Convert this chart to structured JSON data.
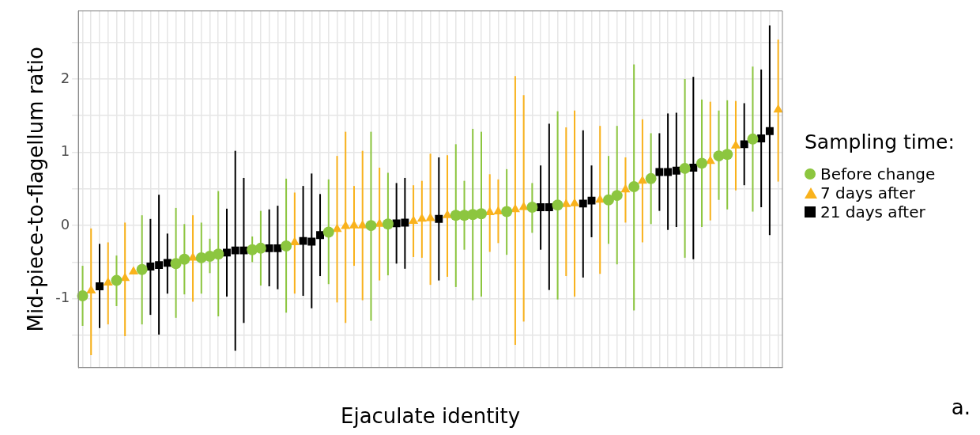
{
  "chart_data": {
    "type": "scatter",
    "xlabel": "Ejaculate identity",
    "ylabel": "Mid-piece-to-flagellum ratio",
    "legend_title": "Sampling time:",
    "legend": "right",
    "grid": true,
    "tick_labels": "y",
    "annotations": [
      "a."
    ],
    "ylim": [
      -1.94,
      2.93
    ],
    "yticks": [
      {
        "value": -1.5,
        "label": null
      },
      -1,
      {
        "value": -0.5,
        "label": null
      },
      0,
      {
        "value": 0.5,
        "label": null
      },
      1,
      {
        "value": 1.5,
        "label": null
      },
      2,
      {
        "value": 2.5,
        "label": null
      }
    ],
    "categories": [
      null,
      null,
      null,
      null,
      null,
      null,
      null,
      null,
      null,
      null,
      null,
      null,
      null,
      null,
      null,
      null,
      null,
      null,
      null,
      null,
      null,
      null,
      null,
      null,
      null,
      null,
      null,
      null,
      null,
      null,
      null,
      null,
      null,
      null,
      null,
      null,
      null,
      null,
      null,
      null,
      null,
      null,
      null,
      null,
      null,
      null,
      null,
      null,
      null,
      null,
      null,
      null,
      null,
      null,
      null,
      null,
      null,
      null,
      null,
      null,
      null,
      null,
      null,
      null,
      null,
      null,
      null,
      null,
      null,
      null,
      null,
      null,
      null,
      null,
      null,
      null,
      null,
      null,
      null,
      null,
      null,
      null,
      null
    ],
    "series": [
      {
        "name": "Before change",
        "color": "#8cc63f",
        "marker": "circle",
        "values": [
          -0.96,
          null,
          null,
          null,
          -0.75,
          null,
          null,
          -0.6,
          null,
          null,
          null,
          -0.52,
          -0.46,
          null,
          -0.44,
          -0.42,
          -0.39,
          null,
          null,
          null,
          -0.33,
          -0.31,
          null,
          null,
          -0.28,
          null,
          null,
          null,
          null,
          -0.09,
          null,
          null,
          null,
          null,
          0,
          null,
          0.02,
          null,
          null,
          null,
          null,
          null,
          null,
          null,
          0.14,
          0.14,
          0.15,
          0.16,
          null,
          null,
          0.19,
          null,
          null,
          0.25,
          null,
          null,
          0.28,
          null,
          null,
          null,
          null,
          null,
          0.35,
          0.41,
          null,
          0.53,
          null,
          0.64,
          null,
          null,
          null,
          0.78,
          null,
          0.85,
          null,
          0.95,
          0.97,
          null,
          null,
          1.18,
          null,
          null,
          null
        ],
        "errors": [
          [
            -1.37,
            -0.55
          ],
          null,
          null,
          null,
          [
            -1.1,
            -0.41
          ],
          null,
          null,
          [
            -1.35,
            0.14
          ],
          null,
          null,
          null,
          [
            -1.26,
            0.24
          ],
          [
            -0.94,
            0.02
          ],
          null,
          [
            -0.93,
            0.04
          ],
          [
            -0.65,
            -0.18
          ],
          [
            -1.24,
            0.47
          ],
          null,
          null,
          null,
          [
            -0.5,
            -0.15
          ],
          [
            -0.82,
            0.2
          ],
          null,
          null,
          [
            -1.19,
            0.64
          ],
          null,
          null,
          null,
          null,
          [
            -0.8,
            0.63
          ],
          null,
          null,
          null,
          null,
          [
            -1.3,
            1.28
          ],
          null,
          [
            -0.68,
            0.72
          ],
          null,
          null,
          null,
          null,
          null,
          null,
          null,
          [
            -0.84,
            1.11
          ],
          [
            -0.33,
            0.61
          ],
          [
            -1.02,
            1.32
          ],
          [
            -0.97,
            1.28
          ],
          null,
          null,
          [
            -0.4,
            0.77
          ],
          null,
          null,
          [
            -0.1,
            0.58
          ],
          null,
          null,
          [
            -1.01,
            1.56
          ],
          null,
          null,
          null,
          null,
          null,
          [
            -0.25,
            0.95
          ],
          [
            -0.53,
            1.36
          ],
          null,
          [
            -1.16,
            2.2
          ],
          null,
          [
            0.02,
            1.26
          ],
          null,
          null,
          null,
          [
            -0.44,
            2
          ],
          null,
          [
            -0.02,
            1.72
          ],
          null,
          [
            0.35,
            1.57
          ],
          [
            0.22,
            1.71
          ],
          null,
          null,
          [
            0.19,
            2.17
          ],
          null,
          null,
          null
        ]
      },
      {
        "name": "7 days after",
        "color": "#f9b21c",
        "marker": "triangle",
        "values": [
          null,
          -0.89,
          null,
          -0.78,
          null,
          -0.72,
          -0.63,
          null,
          null,
          null,
          null,
          null,
          null,
          -0.44,
          null,
          null,
          null,
          null,
          null,
          null,
          null,
          null,
          null,
          null,
          null,
          -0.23,
          null,
          null,
          null,
          null,
          -0.05,
          -0.01,
          0,
          0,
          null,
          0.02,
          null,
          null,
          null,
          0.06,
          0.09,
          0.1,
          null,
          0.14,
          null,
          null,
          null,
          null,
          0.18,
          0.19,
          null,
          0.22,
          0.25,
          null,
          null,
          null,
          null,
          0.29,
          0.3,
          null,
          null,
          0.35,
          null,
          null,
          0.49,
          null,
          0.61,
          null,
          null,
          null,
          null,
          null,
          null,
          null,
          0.88,
          null,
          null,
          1.09,
          null,
          null,
          null,
          null,
          1.58
        ],
        "errors": [
          null,
          [
            -1.77,
            -0.04
          ],
          null,
          [
            -1.35,
            -0.23
          ],
          null,
          [
            -1.51,
            0.04
          ],
          null,
          null,
          null,
          null,
          null,
          null,
          null,
          [
            -1.04,
            0.14
          ],
          null,
          null,
          null,
          null,
          null,
          null,
          null,
          null,
          null,
          null,
          null,
          [
            -0.93,
            0.45
          ],
          null,
          null,
          null,
          null,
          [
            -1.05,
            0.95
          ],
          [
            -1.33,
            1.28
          ],
          [
            -0.55,
            0.54
          ],
          [
            -1.02,
            1.02
          ],
          null,
          [
            -0.75,
            0.79
          ],
          null,
          null,
          null,
          [
            -0.43,
            0.55
          ],
          [
            -0.44,
            0.61
          ],
          [
            -0.81,
            0.98
          ],
          null,
          [
            -0.7,
            0.96
          ],
          null,
          null,
          null,
          null,
          [
            -0.36,
            0.7
          ],
          [
            -0.24,
            0.63
          ],
          null,
          [
            -1.63,
            2.04
          ],
          [
            -1.31,
            1.78
          ],
          null,
          null,
          null,
          null,
          [
            -0.69,
            1.34
          ],
          [
            -0.97,
            1.57
          ],
          null,
          null,
          [
            -0.66,
            1.36
          ],
          null,
          null,
          [
            0.04,
            0.93
          ],
          null,
          [
            -0.23,
            1.45
          ],
          null,
          null,
          null,
          null,
          null,
          null,
          null,
          [
            0.07,
            1.69
          ],
          null,
          null,
          [
            0.48,
            1.7
          ],
          null,
          null,
          null,
          null,
          [
            0.6,
            2.54
          ]
        ]
      },
      {
        "name": "21 days after",
        "color": "#000000",
        "marker": "square",
        "values": [
          null,
          null,
          -0.83,
          null,
          null,
          null,
          null,
          null,
          -0.56,
          -0.54,
          -0.51,
          null,
          null,
          null,
          null,
          null,
          null,
          -0.37,
          -0.34,
          -0.34,
          null,
          null,
          -0.31,
          -0.31,
          null,
          null,
          -0.21,
          -0.22,
          -0.13,
          null,
          null,
          null,
          null,
          null,
          null,
          null,
          null,
          0.03,
          0.04,
          null,
          null,
          null,
          0.09,
          null,
          null,
          null,
          null,
          null,
          null,
          null,
          null,
          null,
          null,
          null,
          0.25,
          0.25,
          null,
          null,
          null,
          0.3,
          0.34,
          null,
          null,
          null,
          null,
          null,
          null,
          null,
          0.73,
          0.73,
          0.75,
          null,
          0.79,
          null,
          null,
          null,
          null,
          null,
          1.11,
          null,
          1.19,
          1.29,
          null
        ],
        "errors": [
          null,
          null,
          [
            -1.4,
            -0.25
          ],
          null,
          null,
          null,
          null,
          null,
          [
            -1.22,
            0.09
          ],
          [
            -1.49,
            0.42
          ],
          [
            -0.93,
            -0.11
          ],
          null,
          null,
          null,
          null,
          null,
          null,
          [
            -0.97,
            0.23
          ],
          [
            -1.71,
            1.02
          ],
          [
            -1.33,
            0.65
          ],
          null,
          null,
          [
            -0.83,
            0.22
          ],
          [
            -0.87,
            0.27
          ],
          null,
          null,
          [
            -0.96,
            0.54
          ],
          [
            -1.13,
            0.71
          ],
          [
            -0.69,
            0.43
          ],
          null,
          null,
          null,
          null,
          null,
          null,
          null,
          null,
          [
            -0.52,
            0.58
          ],
          [
            -0.59,
            0.65
          ],
          null,
          null,
          null,
          [
            -0.75,
            0.93
          ],
          null,
          null,
          null,
          null,
          null,
          null,
          null,
          null,
          null,
          null,
          null,
          [
            -0.33,
            0.82
          ],
          [
            -0.88,
            1.39
          ],
          null,
          null,
          null,
          [
            -0.71,
            1.3
          ],
          [
            -0.16,
            0.82
          ],
          null,
          null,
          null,
          null,
          null,
          null,
          null,
          [
            0.2,
            1.26
          ],
          [
            -0.06,
            1.53
          ],
          [
            -0.02,
            1.54
          ],
          null,
          [
            -0.46,
            2.03
          ],
          null,
          null,
          null,
          null,
          null,
          [
            0.55,
            1.67
          ],
          null,
          [
            0.25,
            2.13
          ],
          [
            -0.13,
            2.73
          ],
          null
        ]
      }
    ]
  }
}
